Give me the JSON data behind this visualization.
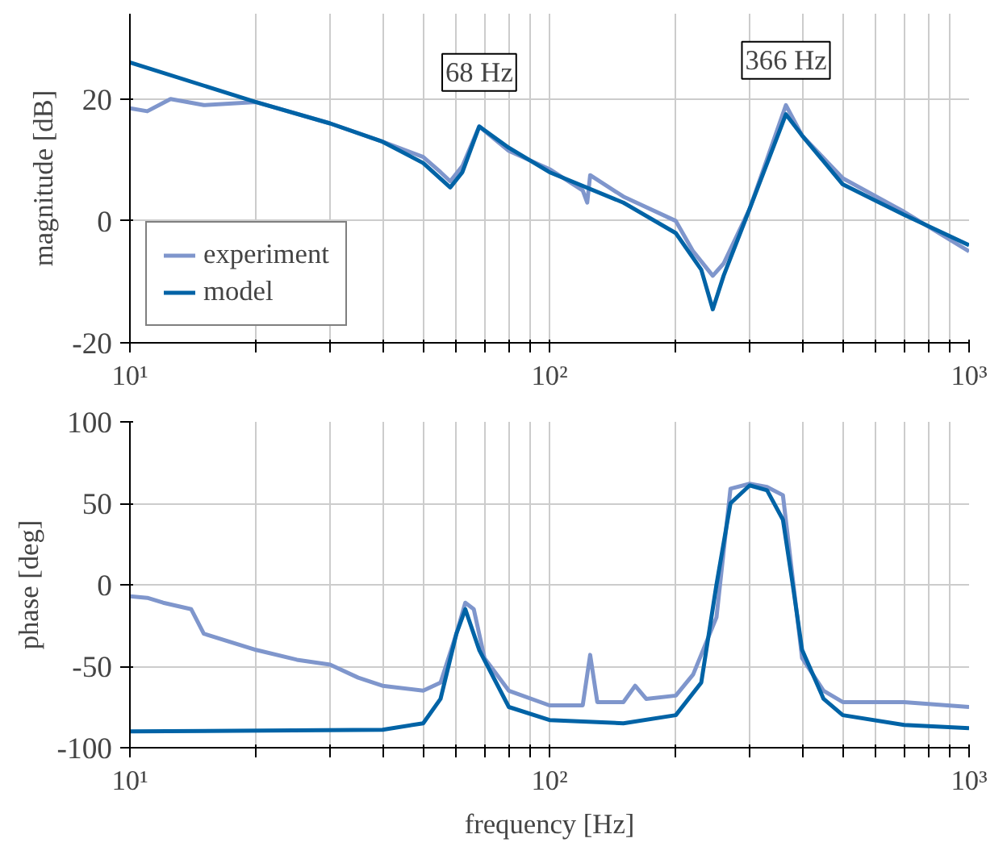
{
  "chart_data": [
    {
      "type": "line",
      "ylabel": "magnitude [dB]",
      "log": "x",
      "grid": true,
      "legend": "bottom left",
      "xlim": [
        10,
        1000
      ],
      "ylim": [
        -20,
        34
      ],
      "xticks": [
        {
          "value": 10,
          "label": "10¹"
        },
        {
          "value": 20,
          "label": null
        },
        {
          "value": 30,
          "label": null
        },
        {
          "value": 40,
          "label": null
        },
        {
          "value": 50,
          "label": null
        },
        {
          "value": 60,
          "label": null
        },
        {
          "value": 70,
          "label": null
        },
        {
          "value": 80,
          "label": null
        },
        {
          "value": 90,
          "label": null
        },
        {
          "value": 100,
          "label": "10²"
        },
        {
          "value": 200,
          "label": null
        },
        {
          "value": 300,
          "label": null
        },
        {
          "value": 400,
          "label": null
        },
        {
          "value": 500,
          "label": null
        },
        {
          "value": 600,
          "label": null
        },
        {
          "value": 700,
          "label": null
        },
        {
          "value": 800,
          "label": null
        },
        {
          "value": 900,
          "label": null
        },
        {
          "value": 1000,
          "label": "10³"
        }
      ],
      "yticks": [
        -20,
        0,
        20
      ],
      "annotations": [
        {
          "text": "68 Hz",
          "x": 68,
          "y": 15.5
        },
        {
          "text": "366 Hz",
          "x": 366,
          "y": 17.5
        }
      ],
      "series": [
        {
          "name": "experiment",
          "color": "#7f96cc",
          "x": [
            10,
            11,
            12.5,
            15,
            20,
            30,
            40,
            50,
            55,
            58,
            62,
            68,
            80,
            100,
            120,
            123,
            125,
            150,
            200,
            220,
            245,
            260,
            300,
            366,
            400,
            500,
            700,
            1000
          ],
          "values": [
            18.5,
            18,
            20,
            19,
            19.5,
            16,
            13,
            10.5,
            8,
            6.5,
            9,
            15.5,
            11.5,
            8.5,
            5,
            3,
            7.5,
            4,
            0,
            -5,
            -9,
            -7,
            2,
            19,
            14,
            7,
            1.5,
            -5
          ]
        },
        {
          "name": "model",
          "color": "#0063a6",
          "x": [
            10,
            20,
            30,
            40,
            50,
            58,
            62,
            68,
            80,
            100,
            150,
            200,
            230,
            245,
            260,
            300,
            366,
            400,
            500,
            700,
            1000
          ],
          "values": [
            26,
            19.5,
            16,
            13,
            9.5,
            5.5,
            8,
            15.5,
            12,
            8,
            3,
            -2,
            -8,
            -14.5,
            -9,
            2,
            17.5,
            14,
            6,
            1,
            -4
          ]
        }
      ]
    },
    {
      "type": "line",
      "xlabel": "frequency [Hz]",
      "ylabel": "phase [deg]",
      "log": "x",
      "grid": true,
      "xlim": [
        10,
        1000
      ],
      "ylim": [
        -100,
        100
      ],
      "xticks": [
        {
          "value": 10,
          "label": "10¹"
        },
        {
          "value": 20,
          "label": null
        },
        {
          "value": 30,
          "label": null
        },
        {
          "value": 40,
          "label": null
        },
        {
          "value": 50,
          "label": null
        },
        {
          "value": 60,
          "label": null
        },
        {
          "value": 70,
          "label": null
        },
        {
          "value": 80,
          "label": null
        },
        {
          "value": 90,
          "label": null
        },
        {
          "value": 100,
          "label": "10²"
        },
        {
          "value": 200,
          "label": null
        },
        {
          "value": 300,
          "label": null
        },
        {
          "value": 400,
          "label": null
        },
        {
          "value": 500,
          "label": null
        },
        {
          "value": 600,
          "label": null
        },
        {
          "value": 700,
          "label": null
        },
        {
          "value": 800,
          "label": null
        },
        {
          "value": 900,
          "label": null
        },
        {
          "value": 1000,
          "label": "10³"
        }
      ],
      "yticks": [
        -100,
        -50,
        0,
        50,
        100
      ],
      "series": [
        {
          "color": "#7f96cc",
          "x": [
            10,
            11,
            12,
            14,
            15,
            20,
            25,
            30,
            35,
            40,
            50,
            55,
            60,
            63,
            66,
            70,
            80,
            100,
            120,
            125,
            130,
            150,
            160,
            170,
            200,
            220,
            250,
            270,
            300,
            330,
            360,
            400,
            450,
            500,
            700,
            1000
          ],
          "values": [
            -7,
            -8,
            -11,
            -15,
            -30,
            -40,
            -46,
            -49,
            -57,
            -62,
            -65,
            -60,
            -30,
            -11,
            -15,
            -45,
            -65,
            -74,
            -74,
            -43,
            -72,
            -72,
            -62,
            -70,
            -68,
            -55,
            -20,
            59,
            62,
            60,
            55,
            -45,
            -65,
            -72,
            -72,
            -75
          ]
        },
        {
          "color": "#0063a6",
          "x": [
            10,
            40,
            50,
            55,
            60,
            63,
            68,
            80,
            100,
            150,
            200,
            230,
            250,
            270,
            300,
            330,
            360,
            380,
            400,
            450,
            500,
            700,
            1000
          ],
          "values": [
            -90,
            -89,
            -85,
            -70,
            -30,
            -15,
            -40,
            -75,
            -83,
            -85,
            -80,
            -60,
            0,
            50,
            61,
            58,
            40,
            0,
            -40,
            -70,
            -80,
            -86,
            -88
          ]
        }
      ]
    }
  ]
}
